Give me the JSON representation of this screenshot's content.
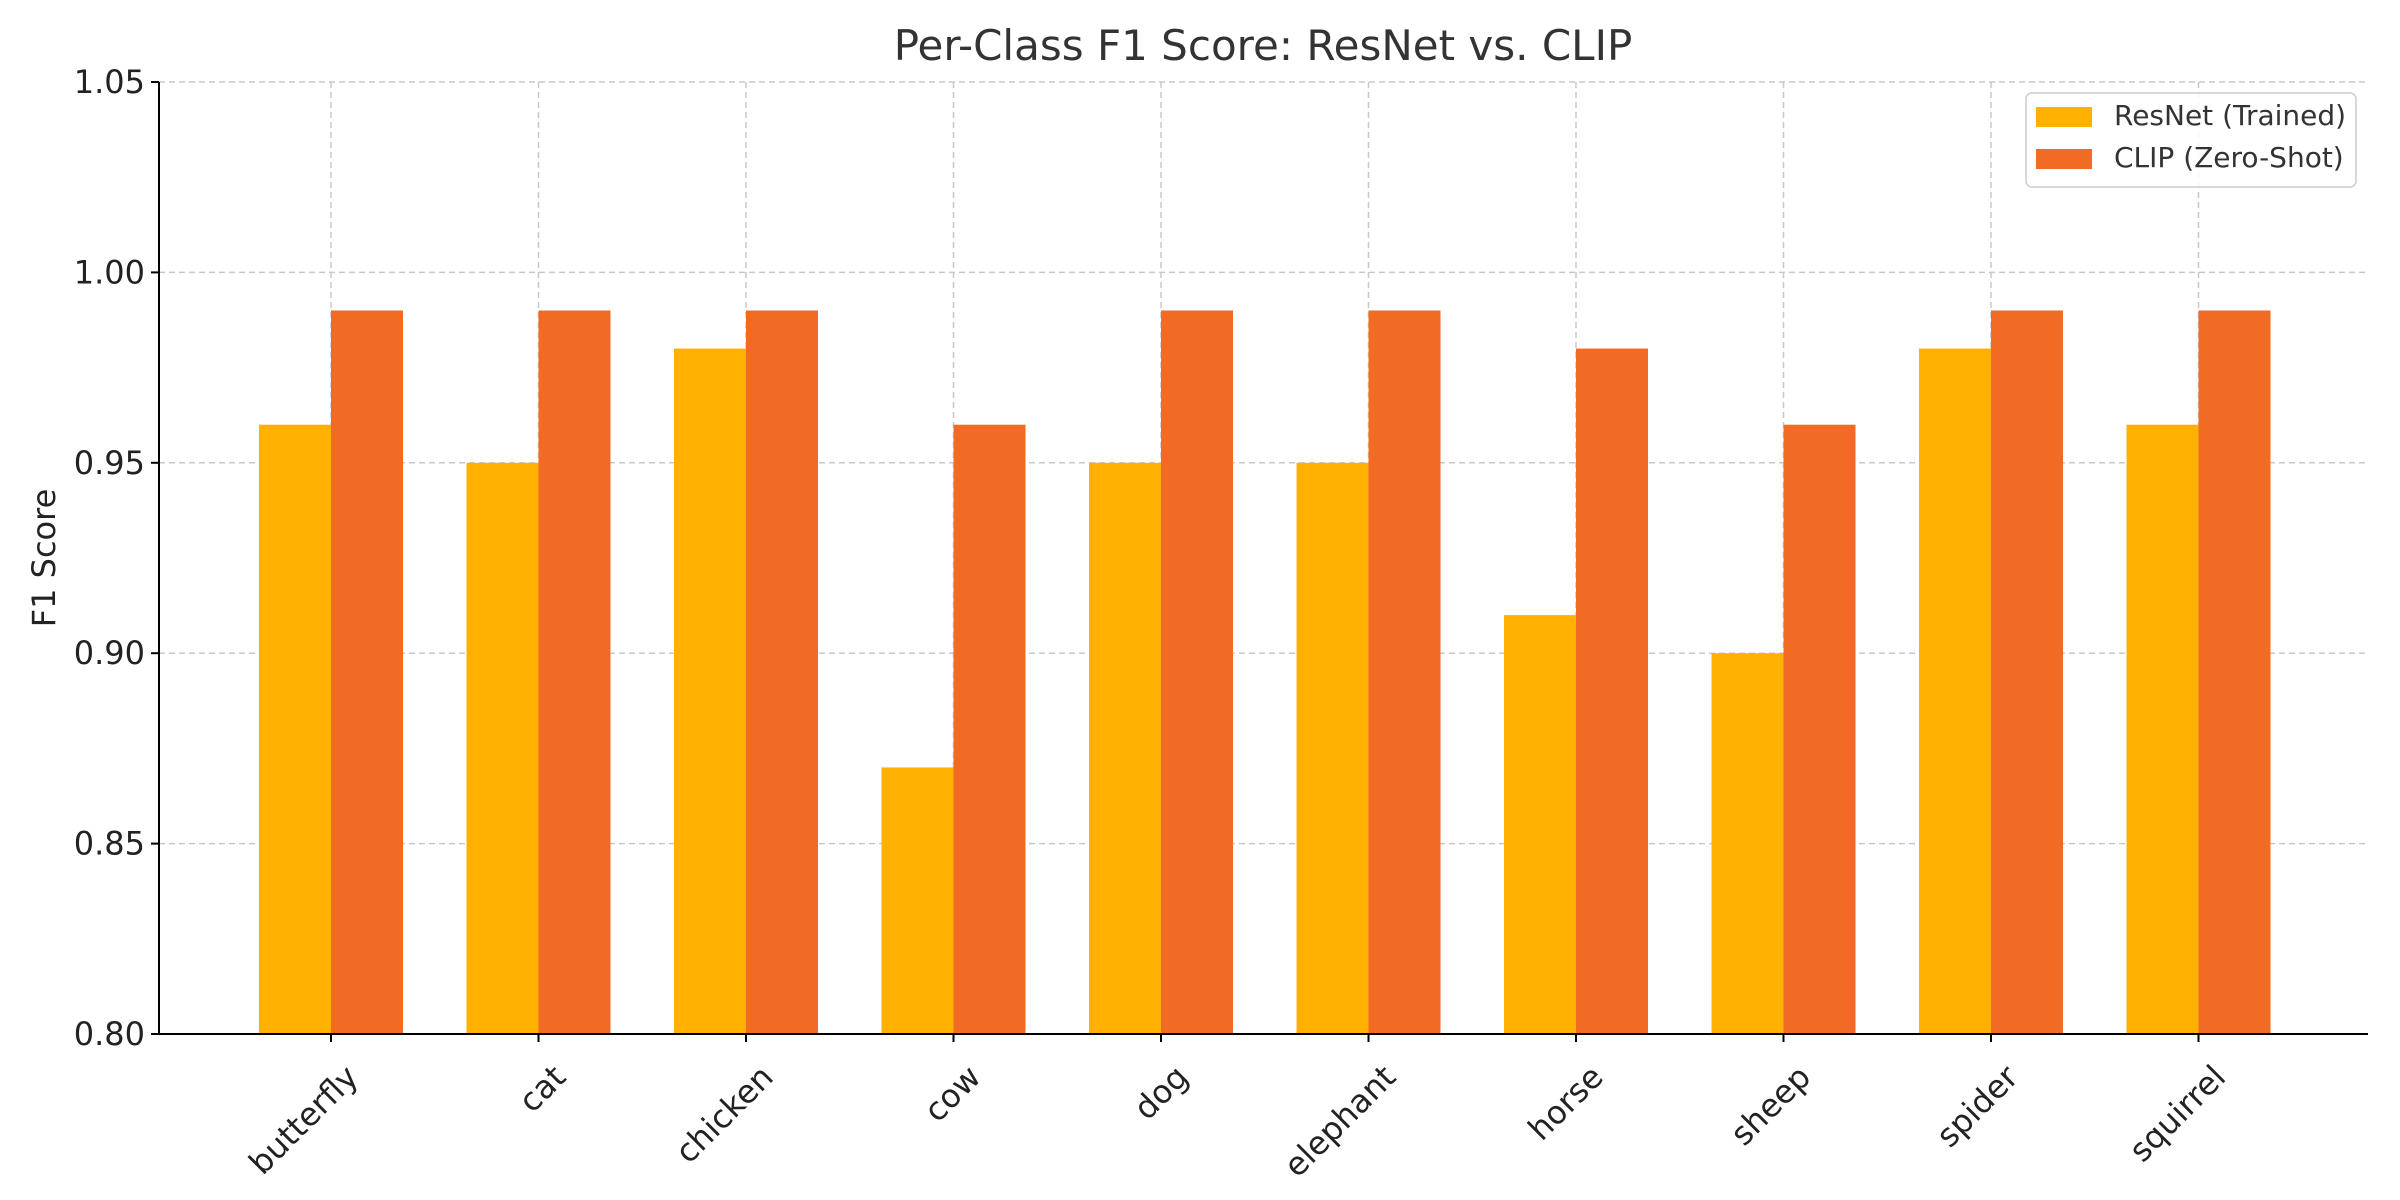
{
  "chart_data": {
    "type": "bar",
    "title": "Per-Class F1 Score: ResNet vs. CLIP",
    "xlabel": "",
    "ylabel": "F1 Score",
    "ylim": [
      0.8,
      1.05
    ],
    "yticks": [
      "0.80",
      "0.85",
      "0.90",
      "0.95",
      "1.00",
      "1.05"
    ],
    "grid": true,
    "legend_position": "top-right",
    "categories": [
      "butterfly",
      "cat",
      "chicken",
      "cow",
      "dog",
      "elephant",
      "horse",
      "sheep",
      "spider",
      "squirrel"
    ],
    "series": [
      {
        "name": "ResNet (Trained)",
        "color": "#FFB000",
        "values": [
          0.96,
          0.95,
          0.98,
          0.87,
          0.95,
          0.95,
          0.91,
          0.9,
          0.98,
          0.96
        ]
      },
      {
        "name": "CLIP (Zero-Shot)",
        "color": "#F26B24",
        "values": [
          0.99,
          0.99,
          0.99,
          0.96,
          0.99,
          0.99,
          0.98,
          0.96,
          0.99,
          0.99
        ]
      }
    ]
  }
}
